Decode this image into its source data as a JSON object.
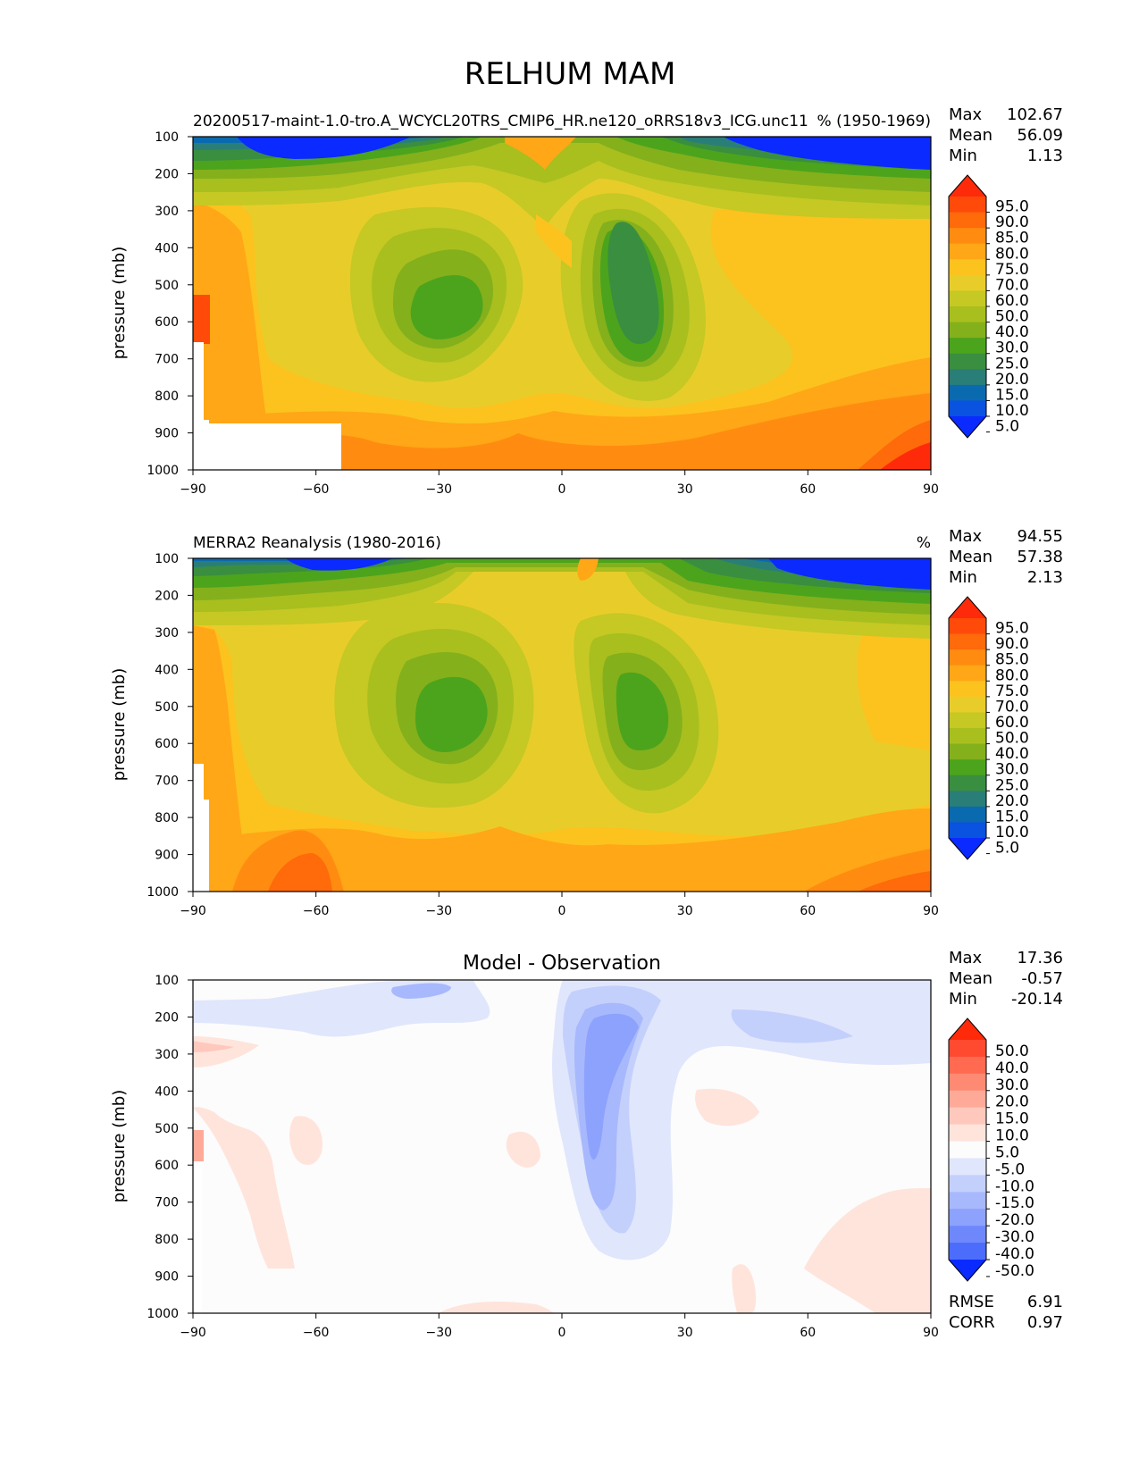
{
  "figure": {
    "title": "RELHUM MAM"
  },
  "chart_data": [
    {
      "type": "heatmap",
      "subtype": "filled-contour latitude-pressure cross-section",
      "title": "",
      "left_title": "20200517-maint-1.0-tro.A_WCYCL20TRS_CMIP6_HR.ne120_oRRS18v3_ICG.unc11",
      "right_title": "% (1950-1969)",
      "xlabel": "",
      "ylabel": "pressure (mb)",
      "xlim": [
        -90,
        90
      ],
      "ylim": [
        1000,
        100
      ],
      "x_ticks": [
        "−90",
        "−60",
        "−30",
        "0",
        "30",
        "60",
        "90"
      ],
      "y_ticks": [
        "100",
        "200",
        "300",
        "400",
        "500",
        "600",
        "700",
        "800",
        "900",
        "1000"
      ],
      "stats": [
        {
          "label": "Max",
          "value": "102.67"
        },
        {
          "label": "Mean",
          "value": "56.09"
        },
        {
          "label": "Min",
          "value": "1.13"
        }
      ],
      "colorbar": {
        "levels": [
          "95.0",
          "90.0",
          "85.0",
          "80.0",
          "75.0",
          "70.0",
          "60.0",
          "50.0",
          "40.0",
          "30.0",
          "25.0",
          "20.0",
          "15.0",
          "10.0",
          "5.0"
        ],
        "colors": [
          "#ff2a0a",
          "#ff4a0a",
          "#ff6a0a",
          "#ff8c10",
          "#ffa716",
          "#fcc21e",
          "#e8cd2a",
          "#c6c824",
          "#a8bf1e",
          "#84b01c",
          "#4ca41c",
          "#3a8e40",
          "#2a7e78",
          "#0a6ab0",
          "#0a52e0",
          "#0a2aff"
        ]
      },
      "fields": {
        "background": 70,
        "lows": [
          {
            "lat": -20,
            "p": 540,
            "value": 25
          },
          {
            "lat": 17,
            "p": 520,
            "value": 18
          }
        ],
        "land_mask": [
          "Antarctica below 650 mb near -90",
          "Antarctic plateau below 870 mb from -87 to -54"
        ]
      }
    },
    {
      "type": "heatmap",
      "subtype": "filled-contour latitude-pressure cross-section",
      "title": "",
      "left_title": "MERRA2 Reanalysis (1980-2016)",
      "right_title": "%",
      "xlabel": "",
      "ylabel": "pressure (mb)",
      "xlim": [
        -90,
        90
      ],
      "ylim": [
        1000,
        100
      ],
      "x_ticks": [
        "−90",
        "−60",
        "−30",
        "0",
        "30",
        "60",
        "90"
      ],
      "y_ticks": [
        "100",
        "200",
        "300",
        "400",
        "500",
        "600",
        "700",
        "800",
        "900",
        "1000"
      ],
      "stats": [
        {
          "label": "Max",
          "value": "94.55"
        },
        {
          "label": "Mean",
          "value": "57.38"
        },
        {
          "label": "Min",
          "value": "2.13"
        }
      ],
      "colorbar": {
        "levels": [
          "95.0",
          "90.0",
          "85.0",
          "80.0",
          "75.0",
          "70.0",
          "60.0",
          "50.0",
          "40.0",
          "30.0",
          "25.0",
          "20.0",
          "15.0",
          "10.0",
          "5.0"
        ],
        "colors": [
          "#ff2a0a",
          "#ff4a0a",
          "#ff6a0a",
          "#ff8c10",
          "#ffa716",
          "#fcc21e",
          "#e8cd2a",
          "#c6c824",
          "#a8bf1e",
          "#84b01c",
          "#4ca41c",
          "#3a8e40",
          "#2a7e78",
          "#0a6ab0",
          "#0a52e0",
          "#0a2aff"
        ]
      },
      "fields": {
        "background": 70,
        "lows": [
          {
            "lat": -25,
            "p": 540,
            "value": 28
          },
          {
            "lat": 20,
            "p": 500,
            "value": 28
          }
        ],
        "land_mask": [
          "Antarctica below 650 mb near -90"
        ]
      }
    },
    {
      "type": "heatmap",
      "subtype": "filled-contour difference field",
      "title": "Model - Observation",
      "left_title": "",
      "right_title": "",
      "xlabel": "",
      "ylabel": "pressure (mb)",
      "xlim": [
        -90,
        90
      ],
      "ylim": [
        1000,
        100
      ],
      "x_ticks": [
        "−90",
        "−60",
        "−30",
        "0",
        "30",
        "60",
        "90"
      ],
      "y_ticks": [
        "100",
        "200",
        "300",
        "400",
        "500",
        "600",
        "700",
        "800",
        "900",
        "1000"
      ],
      "stats": [
        {
          "label": "Max",
          "value": "17.36"
        },
        {
          "label": "Mean",
          "value": "-0.57"
        },
        {
          "label": "Min",
          "value": "-20.14"
        }
      ],
      "extra_stats": [
        {
          "label": "RMSE",
          "value": "6.91"
        },
        {
          "label": "CORR",
          "value": "0.97"
        }
      ],
      "colorbar": {
        "levels": [
          "50.0",
          "40.0",
          "30.0",
          "20.0",
          "15.0",
          "10.0",
          "5.0",
          "-5.0",
          "-10.0",
          "-15.0",
          "-20.0",
          "-30.0",
          "-40.0",
          "-50.0"
        ],
        "colors": [
          "#ff2a0a",
          "#ff4a30",
          "#ff6a50",
          "#ff8a74",
          "#ffaa98",
          "#ffc8bc",
          "#ffe4dc",
          "#fcfcfc",
          "#e0e6fc",
          "#c4d0fc",
          "#a8b8fc",
          "#8ca2fc",
          "#6e88fc",
          "#4c6cfc",
          "#0a2aff"
        ]
      },
      "fields": {
        "background": 0,
        "negative_regions": [
          "equatorial upper troposphere 0 to 25 lat, 150-900 mb, min near -20",
          "upper troposphere 100-300 mb bands -40 to -10 and 30 to 90 lat"
        ],
        "positive_regions": [
          "high latitudes 60 to 90 lat below 750 mb",
          "scattered near -90 to -75 lat"
        ]
      }
    }
  ]
}
